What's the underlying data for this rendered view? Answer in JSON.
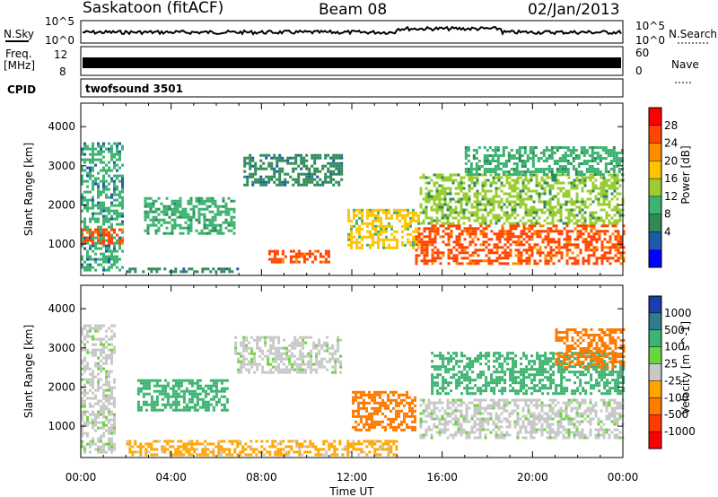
{
  "header": {
    "station": "Saskatoon (fitACF)",
    "beam": "Beam 08",
    "date": "02/Jan/2013"
  },
  "sky_panel": {
    "left_label": "N.Sky",
    "right_label": "N.Search",
    "left_ticks": [
      "10^5",
      "10^0"
    ],
    "right_ticks": [
      "10^5",
      "10^0"
    ]
  },
  "freq_panel": {
    "left_label_1": "Freq.",
    "left_label_2": "[MHz]",
    "right_label": "Nave",
    "left_ticks": [
      "12",
      "8"
    ],
    "right_ticks": [
      "60",
      "0"
    ]
  },
  "cpid": {
    "label": "CPID",
    "program": "twofsound 3501"
  },
  "chart_data": [
    {
      "type": "heatmap",
      "name": "power",
      "ylabel": "Slant Range [km]",
      "xlabel": "Time UT",
      "x_ticks": [
        "00:00",
        "04:00",
        "08:00",
        "12:00",
        "16:00",
        "20:00",
        "00:00"
      ],
      "x_range_hours": [
        0,
        24
      ],
      "ylim": [
        200,
        4600
      ],
      "y_ticks": [
        1000,
        2000,
        3000,
        4000
      ],
      "colorbar": {
        "label": "Power [dB]",
        "ticks": [
          "28",
          "24",
          "20",
          "16",
          "12",
          "8",
          "4"
        ],
        "colors": [
          "#ff0000",
          "#ff4500",
          "#ff8c00",
          "#ffc400",
          "#9acd32",
          "#3cb371",
          "#2e8b57",
          "#1e5aa8",
          "#0000ff"
        ]
      },
      "regions": [
        {
          "t0": 0.0,
          "t1": 1.8,
          "r0": 300,
          "r1": 3600,
          "level": 12
        },
        {
          "t0": 0.0,
          "t1": 1.8,
          "r0": 1000,
          "r1": 1400,
          "level": 28
        },
        {
          "t0": 2.8,
          "t1": 6.8,
          "r0": 1300,
          "r1": 2200,
          "level": 14
        },
        {
          "t0": 2.0,
          "t1": 7.0,
          "r0": 300,
          "r1": 400,
          "level": 10
        },
        {
          "t0": 7.2,
          "t1": 11.5,
          "r0": 2500,
          "r1": 3300,
          "level": 10
        },
        {
          "t0": 8.3,
          "t1": 11.0,
          "r0": 550,
          "r1": 850,
          "level": 28
        },
        {
          "t0": 11.8,
          "t1": 15.0,
          "r0": 900,
          "r1": 1900,
          "level": 18
        },
        {
          "t0": 14.8,
          "t1": 24.0,
          "r0": 500,
          "r1": 1500,
          "level": 28
        },
        {
          "t0": 15.0,
          "t1": 24.0,
          "r0": 1500,
          "r1": 2800,
          "level": 16
        },
        {
          "t0": 17.0,
          "t1": 24.0,
          "r0": 2800,
          "r1": 3500,
          "level": 14
        }
      ]
    },
    {
      "type": "heatmap",
      "name": "velocity",
      "ylabel": "Slant Range [km]",
      "xlabel": "Time UT",
      "x_ticks": [
        "00:00",
        "04:00",
        "08:00",
        "12:00",
        "16:00",
        "20:00",
        "00:00"
      ],
      "x_range_hours": [
        0,
        24
      ],
      "ylim": [
        200,
        4600
      ],
      "y_ticks": [
        1000,
        2000,
        3000,
        4000
      ],
      "colorbar": {
        "label": "Velocity [m s^-1]",
        "ticks": [
          "1000",
          "500",
          "100",
          "25",
          "-25",
          "-100",
          "-500",
          "-1000"
        ],
        "colors": [
          "#1b3ea8",
          "#2e7d8c",
          "#3cb371",
          "#6ad53c",
          "#c8c8c8",
          "#ffa500",
          "#ff7a00",
          "#ff3c00",
          "#ff0000"
        ]
      },
      "regions": [
        {
          "t0": 0.0,
          "t1": 1.5,
          "r0": 300,
          "r1": 3600,
          "level": 0
        },
        {
          "t0": 2.5,
          "t1": 6.5,
          "r0": 1400,
          "r1": 2200,
          "level": 150
        },
        {
          "t0": 2.0,
          "t1": 14.0,
          "r0": 300,
          "r1": 650,
          "level": -100
        },
        {
          "t0": 6.8,
          "t1": 11.5,
          "r0": 2400,
          "r1": 3300,
          "level": 0
        },
        {
          "t0": 12.0,
          "t1": 14.8,
          "r0": 900,
          "r1": 1900,
          "level": -400
        },
        {
          "t0": 15.0,
          "t1": 24.0,
          "r0": 700,
          "r1": 1700,
          "level": 0
        },
        {
          "t0": 15.5,
          "t1": 24.0,
          "r0": 1800,
          "r1": 2900,
          "level": 200
        },
        {
          "t0": 21.0,
          "t1": 24.0,
          "r0": 2500,
          "r1": 3500,
          "level": -400
        }
      ]
    }
  ]
}
